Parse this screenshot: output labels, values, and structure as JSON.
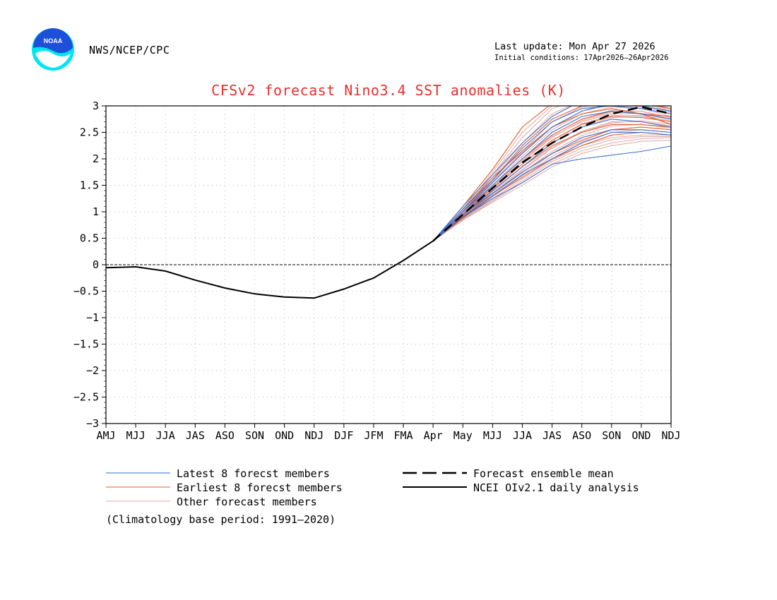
{
  "header": {
    "agency": "NWS/NCEP/CPC",
    "last_update": "Last update: Mon Apr 27 2026",
    "initial_conditions": "Initial conditions: 17Apr2026–26Apr2026",
    "logo_text": "NOAA"
  },
  "colors": {
    "title": "#e8302f",
    "latest": "#3a6fd0",
    "earliest": "#e25b2a",
    "other": "#e0a8a4",
    "analysis": "#000000",
    "grid": "#bbbbbb",
    "logo_blue": "#1d4fd8",
    "logo_cyan": "#00e5f2"
  },
  "chart_data": {
    "type": "line",
    "title": "CFSv2 forecast Nino3.4 SST anomalies (K)",
    "xlabel": "",
    "ylabel": "",
    "categories": [
      "AMJ",
      "MJJ",
      "JJA",
      "JAS",
      "ASO",
      "SON",
      "OND",
      "NDJ",
      "DJF",
      "JFM",
      "FMA",
      "Apr",
      "May",
      "MJJ",
      "JJA",
      "JAS",
      "ASO",
      "SON",
      "OND",
      "NDJ"
    ],
    "ylim": [
      -3,
      3
    ],
    "yticks": [
      -3,
      -2.5,
      -2,
      -1.5,
      -1,
      -0.5,
      0,
      0.5,
      1,
      1.5,
      2,
      2.5,
      3
    ],
    "ytick_labels": [
      "−3",
      "−2.5",
      "−2",
      "−1.5",
      "−1",
      "−0.5",
      "0",
      "0.5",
      "1",
      "1.5",
      "2",
      "2.5",
      "3"
    ],
    "grid": true,
    "analysis": {
      "name": "NCEI OIv2.1 daily analysis",
      "x": [
        -0.2,
        1,
        2,
        3,
        4,
        5,
        6,
        7,
        8,
        9,
        10,
        11
      ],
      "values": [
        -0.06,
        -0.04,
        -0.12,
        -0.29,
        -0.44,
        -0.55,
        -0.61,
        -0.63,
        -0.46,
        -0.25,
        0.08,
        0.45
      ]
    },
    "ensemble_mean": {
      "name": "Forecast ensemble mean",
      "x": [
        11,
        12,
        13,
        14,
        15,
        16,
        17,
        18,
        19
      ],
      "values": [
        0.45,
        0.95,
        1.45,
        1.93,
        2.3,
        2.6,
        2.85,
        2.98,
        2.85
      ]
    },
    "members": [
      {
        "group": "latest",
        "values": [
          0.45,
          1.1,
          1.7,
          2.3,
          2.8,
          3.1,
          3.2,
          3.1,
          3.0
        ]
      },
      {
        "group": "latest",
        "values": [
          0.45,
          1.05,
          1.6,
          2.2,
          2.7,
          2.95,
          3.0,
          2.95,
          2.85
        ]
      },
      {
        "group": "latest",
        "values": [
          0.45,
          1.0,
          1.5,
          2.0,
          2.5,
          2.8,
          2.9,
          2.85,
          2.75
        ]
      },
      {
        "group": "latest",
        "values": [
          0.45,
          0.95,
          1.4,
          1.85,
          2.3,
          2.6,
          2.75,
          2.7,
          2.6
        ]
      },
      {
        "group": "latest",
        "values": [
          0.45,
          0.9,
          1.3,
          1.7,
          2.0,
          2.3,
          2.5,
          2.5,
          2.45
        ]
      },
      {
        "group": "latest",
        "values": [
          0.45,
          0.9,
          1.25,
          1.55,
          1.9,
          2.0,
          2.07,
          2.14,
          2.24
        ]
      },
      {
        "group": "latest",
        "values": [
          0.45,
          1.0,
          1.55,
          2.1,
          2.6,
          2.9,
          3.05,
          3.0,
          2.9
        ]
      },
      {
        "group": "latest",
        "values": [
          0.45,
          0.95,
          1.35,
          1.75,
          2.1,
          2.4,
          2.55,
          2.55,
          2.5
        ]
      },
      {
        "group": "earliest",
        "values": [
          0.45,
          1.1,
          1.8,
          2.6,
          3.05,
          3.2,
          3.2,
          3.1,
          3.0
        ]
      },
      {
        "group": "earliest",
        "values": [
          0.45,
          1.0,
          1.6,
          2.25,
          2.75,
          3.0,
          3.1,
          3.05,
          2.95
        ]
      },
      {
        "group": "earliest",
        "values": [
          0.45,
          0.95,
          1.5,
          2.0,
          2.45,
          2.75,
          2.9,
          2.85,
          2.8
        ]
      },
      {
        "group": "earliest",
        "values": [
          0.45,
          0.92,
          1.4,
          1.85,
          2.25,
          2.5,
          2.65,
          2.65,
          2.6
        ]
      },
      {
        "group": "earliest",
        "values": [
          0.45,
          0.9,
          1.35,
          1.75,
          2.1,
          2.35,
          2.55,
          2.6,
          2.55
        ]
      },
      {
        "group": "earliest",
        "values": [
          0.45,
          0.88,
          1.3,
          1.65,
          2.0,
          2.25,
          2.45,
          2.5,
          2.45
        ]
      },
      {
        "group": "earliest",
        "values": [
          0.45,
          0.95,
          1.45,
          1.9,
          2.35,
          2.65,
          2.8,
          2.78,
          2.7
        ]
      },
      {
        "group": "earliest",
        "values": [
          0.45,
          1.05,
          1.65,
          2.15,
          2.6,
          2.85,
          2.95,
          2.85,
          2.65
        ]
      },
      {
        "group": "other",
        "values": [
          0.45,
          1.05,
          1.75,
          2.5,
          3.0,
          3.2,
          3.2,
          3.1,
          2.95
        ]
      },
      {
        "group": "other",
        "values": [
          0.45,
          1.0,
          1.65,
          2.3,
          2.85,
          3.1,
          3.15,
          3.05,
          2.9
        ]
      },
      {
        "group": "other",
        "values": [
          0.45,
          1.0,
          1.55,
          2.15,
          2.7,
          2.98,
          3.05,
          3.0,
          2.85
        ]
      },
      {
        "group": "other",
        "values": [
          0.45,
          0.98,
          1.5,
          2.05,
          2.55,
          2.85,
          2.98,
          2.95,
          2.8
        ]
      },
      {
        "group": "other",
        "values": [
          0.45,
          0.95,
          1.45,
          1.95,
          2.4,
          2.72,
          2.88,
          2.9,
          2.75
        ]
      },
      {
        "group": "other",
        "values": [
          0.45,
          0.93,
          1.4,
          1.85,
          2.3,
          2.6,
          2.78,
          2.8,
          2.7
        ]
      },
      {
        "group": "other",
        "values": [
          0.45,
          0.9,
          1.35,
          1.78,
          2.2,
          2.5,
          2.68,
          2.72,
          2.65
        ]
      },
      {
        "group": "other",
        "values": [
          0.45,
          0.88,
          1.3,
          1.7,
          2.1,
          2.4,
          2.55,
          2.6,
          2.55
        ]
      },
      {
        "group": "other",
        "values": [
          0.45,
          0.86,
          1.25,
          1.62,
          1.98,
          2.25,
          2.4,
          2.45,
          2.45
        ]
      },
      {
        "group": "other",
        "values": [
          0.45,
          0.85,
          1.2,
          1.55,
          1.9,
          2.15,
          2.3,
          2.38,
          2.4
        ]
      },
      {
        "group": "other",
        "values": [
          0.45,
          0.84,
          1.18,
          1.5,
          1.85,
          2.1,
          2.25,
          2.33,
          2.35
        ]
      },
      {
        "group": "other",
        "values": [
          0.45,
          0.95,
          1.5,
          2.0,
          2.45,
          2.75,
          2.92,
          2.9,
          2.78
        ]
      },
      {
        "group": "other",
        "values": [
          0.45,
          0.97,
          1.58,
          2.12,
          2.6,
          2.9,
          3.02,
          2.98,
          2.88
        ]
      },
      {
        "group": "other",
        "values": [
          0.45,
          0.9,
          1.38,
          1.8,
          2.22,
          2.52,
          2.7,
          2.7,
          2.62
        ]
      },
      {
        "group": "other",
        "values": [
          0.45,
          0.87,
          1.28,
          1.68,
          2.05,
          2.32,
          2.5,
          2.55,
          2.5
        ]
      },
      {
        "group": "other",
        "values": [
          0.45,
          0.92,
          1.42,
          1.9,
          2.35,
          2.66,
          2.82,
          2.82,
          2.72
        ]
      },
      {
        "group": "other",
        "values": [
          0.45,
          0.89,
          1.33,
          1.74,
          2.14,
          2.44,
          2.62,
          2.65,
          2.58
        ]
      },
      {
        "group": "other",
        "values": [
          0.45,
          1.02,
          1.7,
          2.4,
          2.95,
          3.15,
          3.18,
          3.08,
          2.92
        ]
      },
      {
        "group": "other",
        "values": [
          0.45,
          0.85,
          1.22,
          1.58,
          1.95,
          2.2,
          2.36,
          2.42,
          2.42
        ]
      },
      {
        "group": "other",
        "values": [
          0.45,
          0.94,
          1.47,
          1.97,
          2.42,
          2.7,
          2.85,
          2.86,
          2.76
        ]
      }
    ],
    "legend": [
      {
        "key": "latest",
        "label": "Latest 8 forecst members"
      },
      {
        "key": "earliest",
        "label": "Earliest 8 forecst members"
      },
      {
        "key": "other",
        "label": "Other forecast members"
      },
      {
        "key": "mean",
        "label": "Forecast ensemble mean"
      },
      {
        "key": "analysis",
        "label": "NCEI OIv2.1 daily analysis"
      }
    ],
    "note": "(Climatology base period: 1991–2020)"
  }
}
